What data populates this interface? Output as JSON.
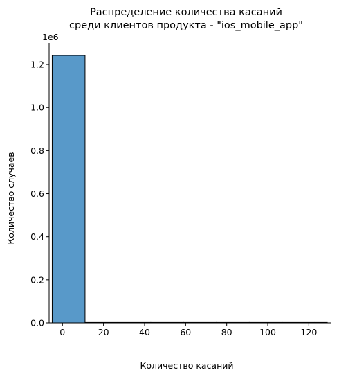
{
  "chart_data": {
    "type": "histogram",
    "title": [
      "Распределение количества касаний",
      "среди клиентов продукта - \"ios_mobile_app\""
    ],
    "xlabel": "Количество касаний",
    "ylabel": "Количество случаев",
    "y_offset_label": "1e6",
    "xlim": [
      -6.5,
      131
    ],
    "ylim": [
      0,
      1300000
    ],
    "x_ticks": [
      0,
      20,
      40,
      60,
      80,
      100,
      120
    ],
    "y_ticks": [
      0,
      200000,
      400000,
      600000,
      800000,
      1000000,
      1200000
    ],
    "y_tick_labels": [
      "0.0",
      "0.2",
      "0.4",
      "0.6",
      "0.8",
      "1.0",
      "1.2"
    ],
    "bins": [
      {
        "x0": -5,
        "x1": 11,
        "count": 1242000
      },
      {
        "x0": 11,
        "x1": 27,
        "count": 300
      },
      {
        "x0": 27,
        "x1": 43,
        "count": 40
      },
      {
        "x0": 43,
        "x1": 59,
        "count": 10
      },
      {
        "x0": 59,
        "x1": 75,
        "count": 5
      },
      {
        "x0": 75,
        "x1": 91,
        "count": 3
      },
      {
        "x0": 91,
        "x1": 107,
        "count": 2
      },
      {
        "x0": 107,
        "x1": 123,
        "count": 1
      },
      {
        "x0": 123,
        "x1": 129,
        "count": 1
      }
    ],
    "bar_color": "#5899c9",
    "grid": false,
    "legend": "none"
  }
}
